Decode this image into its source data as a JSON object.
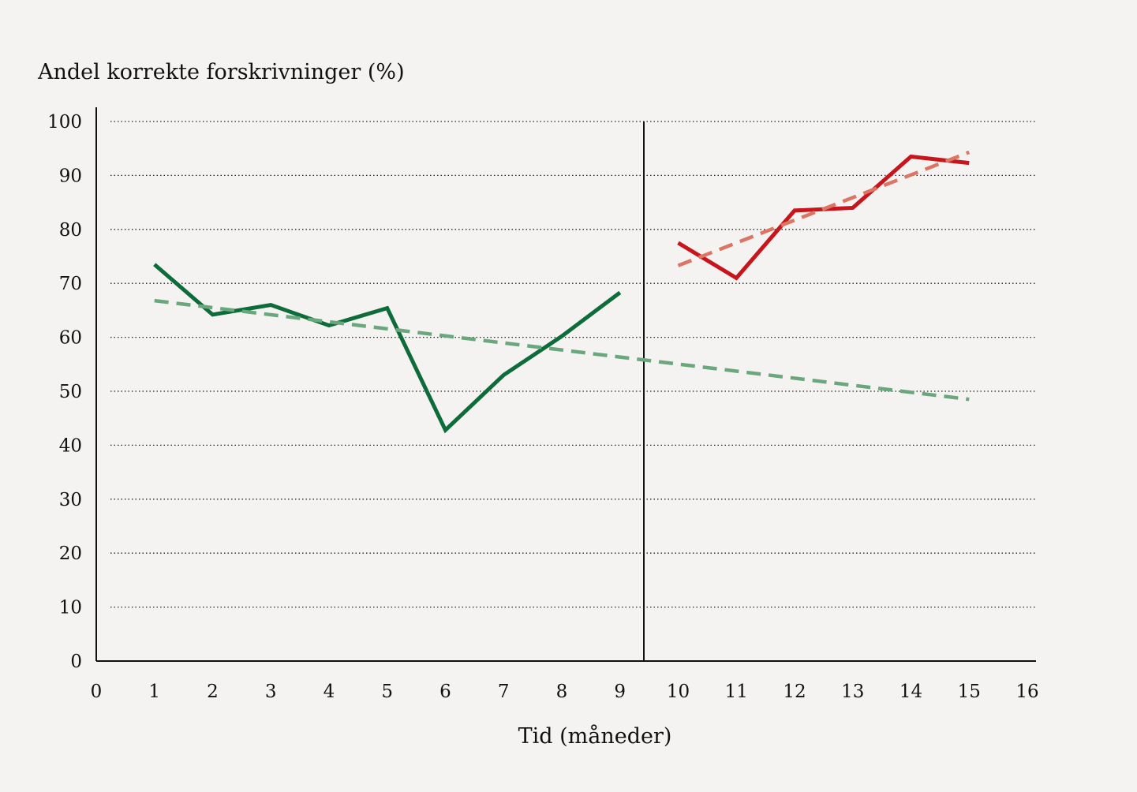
{
  "chart_data": {
    "type": "line",
    "title": "",
    "ylabel": "Andel korrekte forskrivninger (%)",
    "xlabel": "Tid (måneder)",
    "xlim": [
      0,
      16
    ],
    "ylim": [
      0,
      100
    ],
    "x_ticks": [
      "0",
      "1",
      "2",
      "3",
      "4",
      "5",
      "6",
      "7",
      "8",
      "9",
      "10",
      "11",
      "12",
      "13",
      "14",
      "15",
      "16"
    ],
    "y_ticks": [
      "0",
      "10",
      "20",
      "30",
      "40",
      "50",
      "60",
      "70",
      "80",
      "90",
      "100"
    ],
    "grid": "horizontal dotted",
    "legend": "none",
    "intervention_x": 9.4,
    "series": [
      {
        "style": "solid",
        "color": "#0e6b3a",
        "x": [
          1,
          2,
          3,
          4,
          5,
          6,
          7,
          8,
          9
        ],
        "y": [
          73.5,
          64.2,
          66,
          62.2,
          65.4,
          42.8,
          53,
          60.2,
          68.3
        ]
      },
      {
        "style": "dashed",
        "color": "#6aa77d",
        "x": [
          1,
          15
        ],
        "y": [
          66.8,
          48.5
        ]
      },
      {
        "style": "solid",
        "color": "#c8141b",
        "x": [
          10,
          11,
          12,
          13,
          14,
          15
        ],
        "y": [
          77.5,
          71,
          83.5,
          84,
          93.5,
          92.3
        ]
      },
      {
        "style": "dashed",
        "color": "#dc7563",
        "x": [
          10,
          15
        ],
        "y": [
          73.3,
          94.3
        ]
      }
    ]
  }
}
